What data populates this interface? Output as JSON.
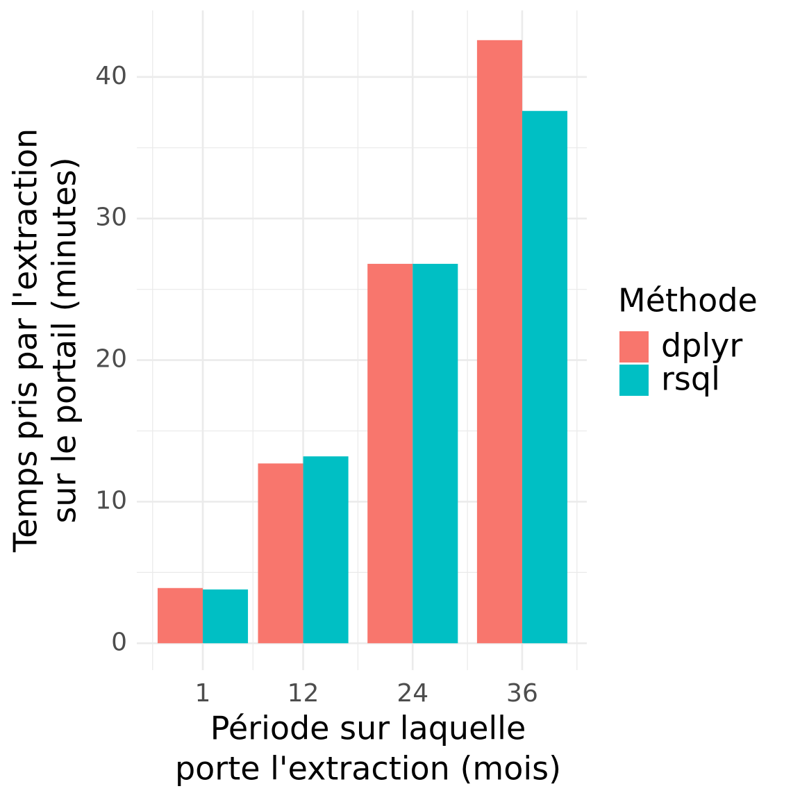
{
  "chart_data": {
    "type": "bar",
    "x_label": [
      "Période sur laquelle",
      "porte l'extraction (mois)"
    ],
    "y_label": [
      "Temps pris par l'extraction",
      "sur le portail (minutes)"
    ],
    "legend_title": "Méthode",
    "x": [
      1,
      12,
      24,
      36
    ],
    "series": [
      {
        "name": "dplyr",
        "color": "#f8766d",
        "values": [
          3.9,
          12.7,
          26.8,
          42.6
        ]
      },
      {
        "name": "rsql",
        "color": "#00bfc4",
        "values": [
          3.8,
          13.2,
          26.8,
          37.6
        ]
      }
    ],
    "xlim": [
      -6.23,
      43.08
    ],
    "xticks": [
      1,
      12,
      24,
      36
    ],
    "xminor": [
      -4.5,
      6.5,
      18,
      30,
      42
    ],
    "ylim": [
      -1.9,
      44.7
    ],
    "yticks": [
      0,
      10,
      20,
      30,
      40
    ],
    "yminor": [
      5,
      15,
      25,
      35
    ],
    "grid": true,
    "legend_position": "right"
  }
}
